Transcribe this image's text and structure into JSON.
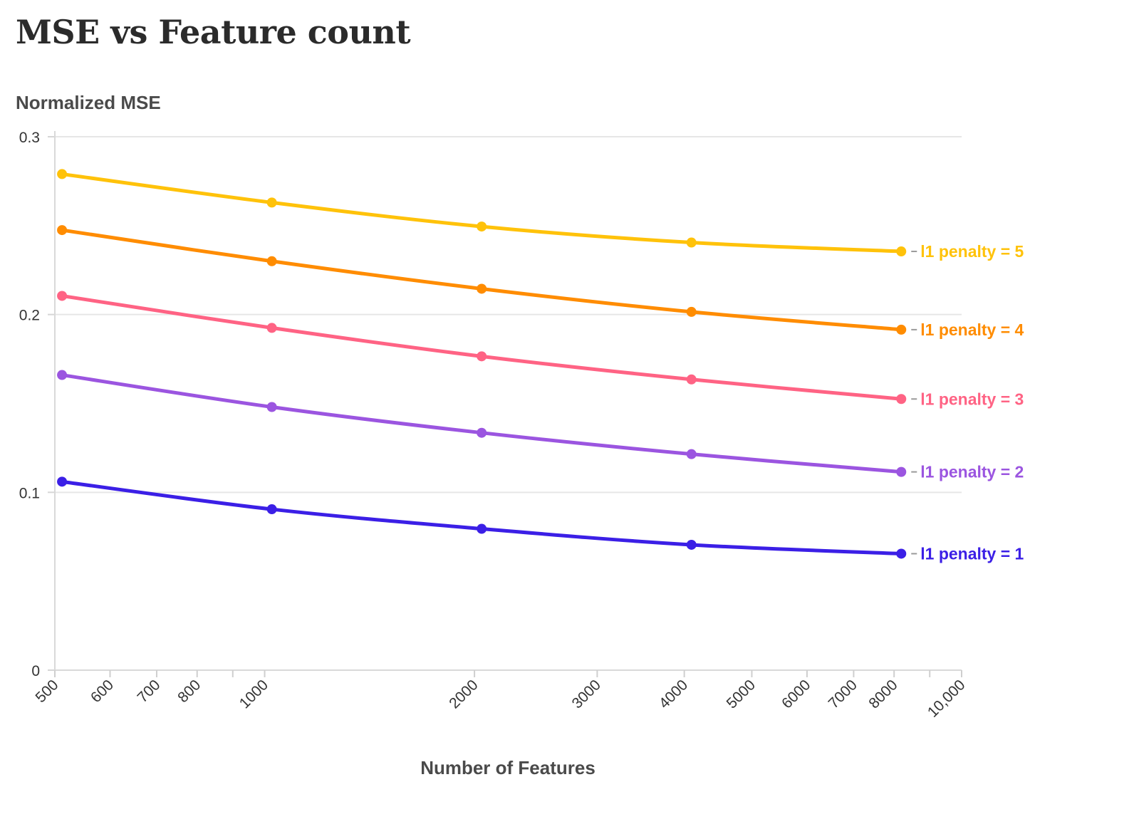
{
  "chart_data": {
    "type": "line",
    "title": "MSE vs Feature count",
    "ylabel": "Normalized MSE",
    "xlabel": "Number of Features",
    "x_scale": "log",
    "xlim": [
      500,
      10000
    ],
    "ylim": [
      0,
      0.3
    ],
    "x_ticks": [
      500,
      600,
      700,
      800,
      900,
      1000,
      2000,
      3000,
      4000,
      5000,
      6000,
      7000,
      8000,
      9000,
      10000
    ],
    "x_tick_labels": [
      "500",
      "600",
      "700",
      "800",
      "",
      "1000",
      "2000",
      "3000",
      "4000",
      "5000",
      "6000",
      "7000",
      "8000",
      "",
      "10,000"
    ],
    "y_ticks": [
      0,
      0.1,
      0.2,
      0.3
    ],
    "y_tick_labels": [
      "0",
      "0.1",
      "0.2",
      "0.3"
    ],
    "grid": "horizontal",
    "legend": "inline labels at right end of each line",
    "x": [
      512,
      1024,
      2048,
      4096,
      8192
    ],
    "series": [
      {
        "name": "l1 penalty = 5",
        "color": "#FFC20A",
        "values": [
          0.279,
          0.263,
          0.2495,
          0.2405,
          0.2355
        ]
      },
      {
        "name": "l1 penalty = 4",
        "color": "#FF8C00",
        "values": [
          0.2475,
          0.23,
          0.2145,
          0.2015,
          0.1915
        ]
      },
      {
        "name": "l1 penalty = 3",
        "color": "#FF6384",
        "values": [
          0.2105,
          0.1925,
          0.1765,
          0.1635,
          0.1525
        ]
      },
      {
        "name": "l1 penalty = 2",
        "color": "#9B55E0",
        "values": [
          0.166,
          0.148,
          0.1335,
          0.1215,
          0.1115
        ]
      },
      {
        "name": "l1 penalty = 1",
        "color": "#3B1FE6",
        "values": [
          0.106,
          0.0905,
          0.0795,
          0.0705,
          0.0655
        ]
      }
    ]
  }
}
